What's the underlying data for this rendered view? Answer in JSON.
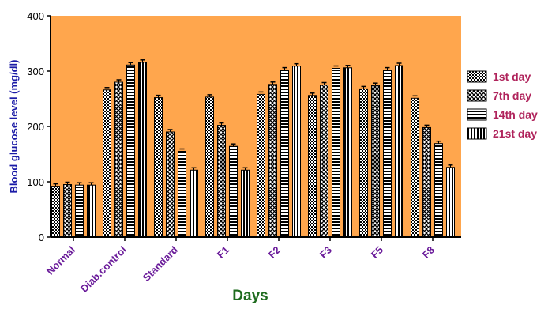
{
  "chart_data": {
    "type": "bar",
    "title": "",
    "xlabel": "Days",
    "ylabel": "Blood glucose level (mg/dl)",
    "ylim": [
      0,
      400
    ],
    "yticks": [
      0,
      100,
      200,
      300,
      400
    ],
    "categories": [
      "Normal",
      "Diab.control",
      "Standard",
      "F1",
      "F2",
      "F3",
      "F5",
      "F8"
    ],
    "series": [
      {
        "name": "1st day",
        "pattern": "checker",
        "values": [
          92,
          266,
          252,
          253,
          258,
          256,
          268,
          251
        ]
      },
      {
        "name": "7th day",
        "pattern": "xcross",
        "values": [
          95,
          280,
          190,
          202,
          276,
          275,
          274,
          198
        ]
      },
      {
        "name": "14th day",
        "pattern": "hstripes",
        "values": [
          94,
          311,
          155,
          164,
          302,
          305,
          302,
          169
        ]
      },
      {
        "name": "21st day",
        "pattern": "vstripes",
        "values": [
          94,
          316,
          121,
          121,
          309,
          306,
          310,
          126
        ]
      }
    ],
    "grid": false,
    "legend_position": "right",
    "colors": {
      "plot_background": "#FFA64D",
      "axis": "#000000",
      "ylabel": "#1A1AA6",
      "xlabel": "#1E6B1E",
      "category_labels": "#6A1B9A",
      "legend_text": "#B0245C"
    }
  }
}
